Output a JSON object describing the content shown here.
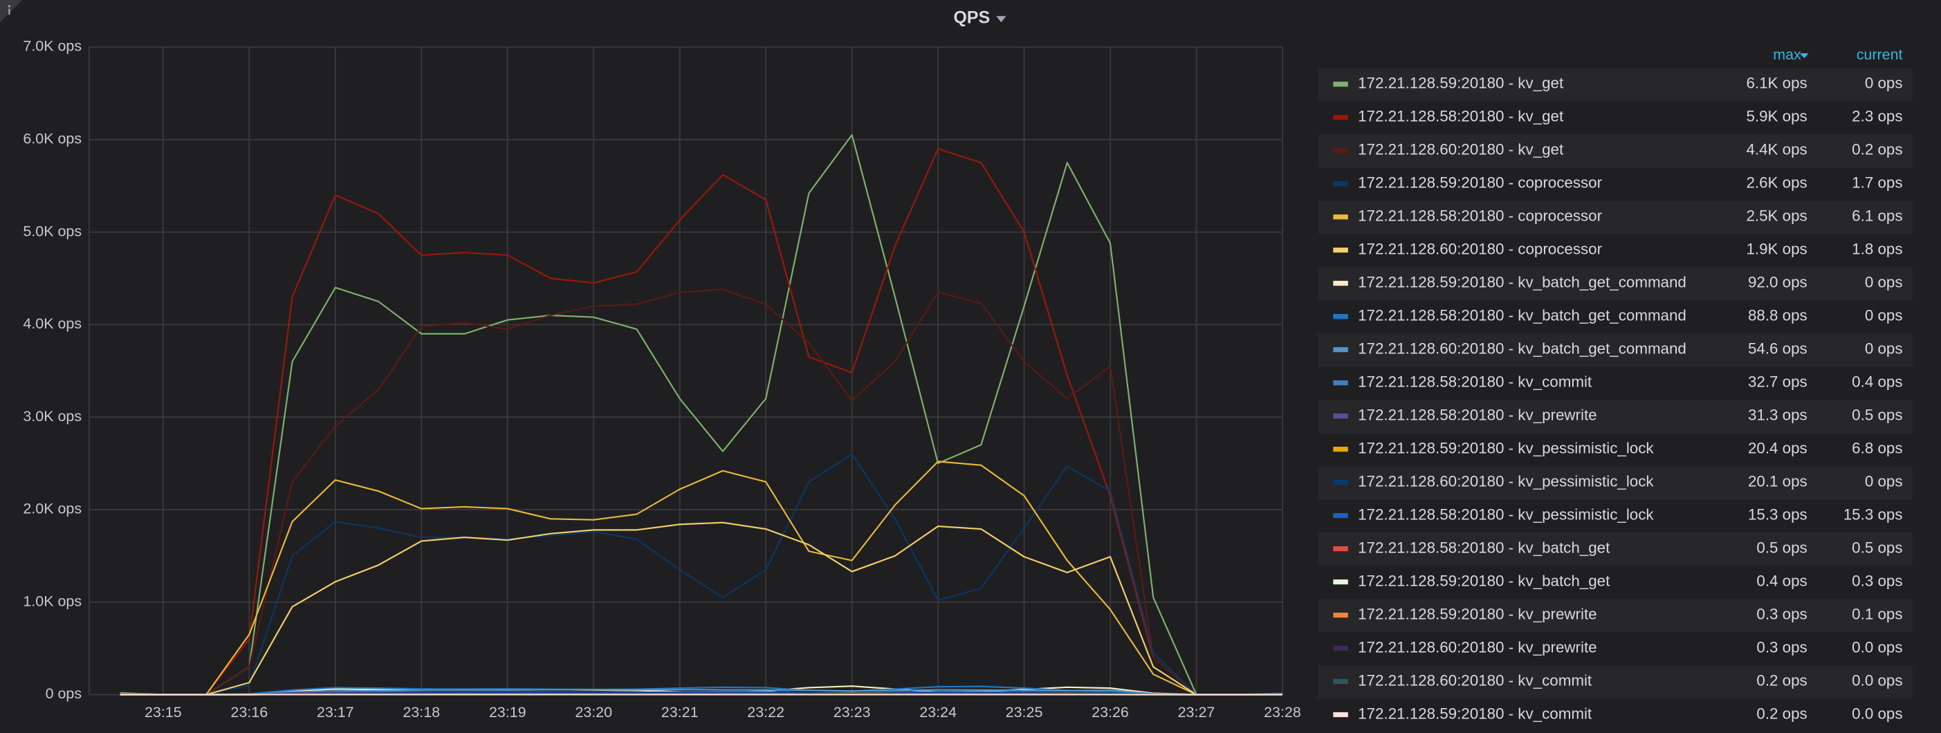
{
  "chart_data": {
    "type": "line",
    "title": "QPS",
    "legend_headers": {
      "max": "max",
      "current": "current"
    },
    "categories": [
      null,
      "23:15",
      null,
      "23:16",
      null,
      "23:17",
      null,
      "23:18",
      null,
      "23:19",
      null,
      "23:20",
      null,
      "23:21",
      null,
      "23:22",
      null,
      "23:23",
      null,
      "23:24",
      null,
      "23:25",
      null,
      "23:26",
      null,
      "23:27",
      null,
      "23:28"
    ],
    "ylim": [
      0,
      7000
    ],
    "yticks": [
      {
        "value": 0,
        "label": "0 ops"
      },
      {
        "value": 1000,
        "label": "1.0K ops"
      },
      {
        "value": 2000,
        "label": "2.0K ops"
      },
      {
        "value": 3000,
        "label": "3.0K ops"
      },
      {
        "value": 4000,
        "label": "4.0K ops"
      },
      {
        "value": 5000,
        "label": "5.0K ops"
      },
      {
        "value": 6000,
        "label": "6.0K ops"
      },
      {
        "value": 7000,
        "label": "7.0K ops"
      }
    ],
    "grid": true,
    "series": [
      {
        "name": "172.21.128.59:20180 - kv_get",
        "color": "#7eb26d",
        "max": "6.1K ops",
        "current": "0 ops",
        "values": [
          20,
          0,
          0,
          300,
          3600,
          4400,
          4250,
          3900,
          3900,
          4050,
          4100,
          4080,
          3950,
          3200,
          2630,
          3200,
          5420,
          6050,
          4300,
          2500,
          2700,
          4200,
          5750,
          4880,
          1050,
          0,
          0,
          0
        ]
      },
      {
        "name": "172.21.128.58:20180 - kv_get",
        "color": "#99180a",
        "max": "5.9K ops",
        "current": "2.3 ops",
        "values": [
          10,
          0,
          0,
          600,
          4300,
          5400,
          5200,
          4750,
          4780,
          4750,
          4500,
          4450,
          4570,
          5130,
          5620,
          5350,
          3650,
          3480,
          4850,
          5900,
          5750,
          5000,
          3450,
          2150,
          400,
          0,
          0,
          2.3
        ]
      },
      {
        "name": "172.21.128.60:20180 - kv_get",
        "color": "#5c1a12",
        "max": "4.4K ops",
        "current": "0.2 ops",
        "values": [
          10,
          0,
          0,
          300,
          2300,
          2900,
          3300,
          3980,
          4020,
          3950,
          4100,
          4200,
          4220,
          4350,
          4380,
          4220,
          3800,
          3180,
          3600,
          4350,
          4230,
          3600,
          3200,
          3550,
          400,
          0,
          0,
          0.2
        ]
      },
      {
        "name": "172.21.128.59:20180 - coprocessor",
        "color": "#0a3766",
        "max": "2.6K ops",
        "current": "1.7 ops",
        "values": [
          5,
          0,
          0,
          100,
          1500,
          1870,
          1800,
          1700,
          1700,
          1680,
          1720,
          1760,
          1680,
          1350,
          1050,
          1350,
          2300,
          2600,
          1900,
          1020,
          1150,
          1800,
          2470,
          2200,
          450,
          0,
          0,
          1.7
        ]
      },
      {
        "name": "172.21.128.58:20180 - coprocessor",
        "color": "#eab839",
        "max": "2.5K ops",
        "current": "6.1 ops",
        "values": [
          5,
          0,
          0,
          650,
          1870,
          2320,
          2200,
          2010,
          2030,
          2010,
          1900,
          1890,
          1950,
          2220,
          2420,
          2300,
          1550,
          1450,
          2050,
          2520,
          2480,
          2150,
          1450,
          920,
          220,
          0,
          0,
          6.1
        ]
      },
      {
        "name": "172.21.128.60:20180 - coprocessor",
        "color": "#f4d06a",
        "max": "1.9K ops",
        "current": "1.8 ops",
        "values": [
          5,
          0,
          0,
          130,
          950,
          1220,
          1400,
          1660,
          1700,
          1670,
          1740,
          1780,
          1780,
          1840,
          1860,
          1790,
          1620,
          1330,
          1500,
          1820,
          1790,
          1490,
          1320,
          1490,
          300,
          0,
          0,
          1.8
        ]
      },
      {
        "name": "172.21.128.59:20180 - kv_batch_get_command",
        "color": "#fceaca",
        "max": "92.0 ops",
        "current": "0 ops",
        "values": [
          0,
          0,
          0,
          5,
          40,
          60,
          55,
          50,
          52,
          50,
          55,
          50,
          45,
          30,
          20,
          40,
          75,
          92,
          60,
          30,
          35,
          55,
          80,
          70,
          15,
          0,
          0,
          0
        ]
      },
      {
        "name": "172.21.128.58:20180 - kv_batch_get_command",
        "color": "#1f78c1",
        "max": "88.8 ops",
        "current": "0 ops",
        "values": [
          0,
          0,
          0,
          8,
          50,
          75,
          70,
          62,
          60,
          62,
          58,
          55,
          58,
          70,
          80,
          75,
          45,
          40,
          60,
          85,
          88.8,
          70,
          45,
          30,
          8,
          0,
          0,
          0
        ]
      },
      {
        "name": "172.21.128.60:20180 - kv_batch_get_command",
        "color": "#5195ce",
        "max": "54.6 ops",
        "current": "0 ops",
        "values": [
          0,
          0,
          0,
          3,
          30,
          40,
          42,
          48,
          50,
          50,
          52,
          54.6,
          53,
          54,
          52,
          50,
          47,
          40,
          44,
          52,
          50,
          45,
          42,
          48,
          10,
          0,
          0,
          0
        ]
      },
      {
        "name": "172.21.128.58:20180 - kv_commit",
        "color": "#447ebc",
        "max": "32.7 ops",
        "current": "0.4 ops",
        "values": [
          0,
          0,
          0,
          2,
          20,
          30,
          28,
          25,
          25,
          26,
          25,
          24,
          25,
          28,
          32.7,
          30,
          18,
          16,
          24,
          31,
          30,
          25,
          17,
          12,
          3,
          0,
          0,
          0.4
        ]
      },
      {
        "name": "172.21.128.58:20180 - kv_prewrite",
        "color": "#614d93",
        "max": "31.3 ops",
        "current": "0.5 ops",
        "values": [
          0,
          0,
          0,
          2,
          19,
          29,
          27,
          24,
          24,
          25,
          24,
          23,
          24,
          27,
          31.3,
          29,
          17,
          15,
          23,
          30,
          29,
          24,
          16,
          11,
          3,
          0,
          0,
          0.5
        ]
      },
      {
        "name": "172.21.128.59:20180 - kv_pessimistic_lock",
        "color": "#e5a80e",
        "max": "20.4 ops",
        "current": "6.8 ops",
        "values": [
          0,
          0,
          0,
          1,
          10,
          15,
          14,
          13,
          13,
          14,
          14,
          13,
          12,
          10,
          8,
          11,
          18,
          20.4,
          15,
          9,
          10,
          14,
          19,
          17,
          4,
          0,
          0,
          6.8
        ]
      },
      {
        "name": "172.21.128.60:20180 - kv_pessimistic_lock",
        "color": "#0b3a6e",
        "max": "20.1 ops",
        "current": "0 ops",
        "values": [
          0,
          0,
          0,
          1,
          11,
          15,
          16,
          17,
          18,
          18,
          19,
          20.1,
          19,
          19,
          18,
          18,
          17,
          14,
          15,
          18,
          18,
          16,
          15,
          17,
          4,
          0,
          0,
          0
        ]
      },
      {
        "name": "172.21.128.58:20180 - kv_pessimistic_lock",
        "color": "#1f60c4",
        "max": "15.3 ops",
        "current": "15.3 ops",
        "values": [
          0,
          0,
          0,
          1,
          8,
          12,
          11,
          10,
          10,
          10,
          10,
          10,
          10,
          12,
          14,
          13,
          8,
          7,
          10,
          13,
          13,
          11,
          8,
          6,
          2,
          0,
          0,
          15.3
        ]
      },
      {
        "name": "172.21.128.58:20180 - kv_batch_get",
        "color": "#e24d42",
        "max": "0.5 ops",
        "current": "0.5 ops",
        "values": [
          0,
          0,
          0,
          0,
          0.2,
          0.3,
          0.3,
          0.2,
          0.2,
          0.3,
          0.2,
          0.2,
          0.3,
          0.3,
          0.4,
          0.3,
          0.2,
          0.2,
          0.3,
          0.4,
          0.4,
          0.3,
          0.2,
          0.2,
          0.1,
          0,
          0,
          0.5
        ]
      },
      {
        "name": "172.21.128.59:20180 - kv_batch_get",
        "color": "#e0f9d7",
        "max": "0.4 ops",
        "current": "0.3 ops",
        "values": [
          0,
          0,
          0,
          0,
          0.2,
          0.3,
          0.2,
          0.2,
          0.2,
          0.2,
          0.2,
          0.2,
          0.2,
          0.2,
          0.1,
          0.2,
          0.3,
          0.4,
          0.3,
          0.2,
          0.2,
          0.3,
          0.4,
          0.3,
          0.1,
          0,
          0,
          0.3
        ]
      },
      {
        "name": "172.21.128.59:20180 - kv_prewrite",
        "color": "#ef843c",
        "max": "0.3 ops",
        "current": "0.1 ops",
        "values": [
          0,
          0,
          0,
          0,
          0.1,
          0.2,
          0.2,
          0.2,
          0.2,
          0.2,
          0.2,
          0.2,
          0.2,
          0.1,
          0.1,
          0.2,
          0.3,
          0.3,
          0.2,
          0.1,
          0.1,
          0.2,
          0.3,
          0.2,
          0.1,
          0,
          0,
          0.1
        ]
      },
      {
        "name": "172.21.128.60:20180 - kv_prewrite",
        "color": "#3f2b5b",
        "max": "0.3 ops",
        "current": "0.0 ops",
        "values": [
          0,
          0,
          0,
          0,
          0.1,
          0.2,
          0.2,
          0.2,
          0.2,
          0.2,
          0.2,
          0.3,
          0.2,
          0.2,
          0.2,
          0.2,
          0.2,
          0.2,
          0.2,
          0.2,
          0.2,
          0.2,
          0.2,
          0.2,
          0.1,
          0,
          0,
          0
        ]
      },
      {
        "name": "172.21.128.60:20180 - kv_commit",
        "color": "#2f575e",
        "max": "0.2 ops",
        "current": "0.0 ops",
        "values": [
          0,
          0,
          0,
          0,
          0.1,
          0.1,
          0.1,
          0.1,
          0.1,
          0.1,
          0.2,
          0.2,
          0.1,
          0.2,
          0.1,
          0.1,
          0.1,
          0.1,
          0.1,
          0.1,
          0.1,
          0.1,
          0.1,
          0.1,
          0,
          0,
          0,
          0
        ]
      },
      {
        "name": "172.21.128.59:20180 - kv_commit",
        "color": "#fce2de",
        "max": "0.2 ops",
        "current": "0.0 ops",
        "values": [
          0,
          0,
          0,
          0,
          0.1,
          0.1,
          0.1,
          0.1,
          0.1,
          0.1,
          0.1,
          0.1,
          0.1,
          0.1,
          0.1,
          0.1,
          0.2,
          0.2,
          0.1,
          0.1,
          0.1,
          0.1,
          0.2,
          0.1,
          0,
          0,
          0,
          0
        ]
      }
    ]
  }
}
